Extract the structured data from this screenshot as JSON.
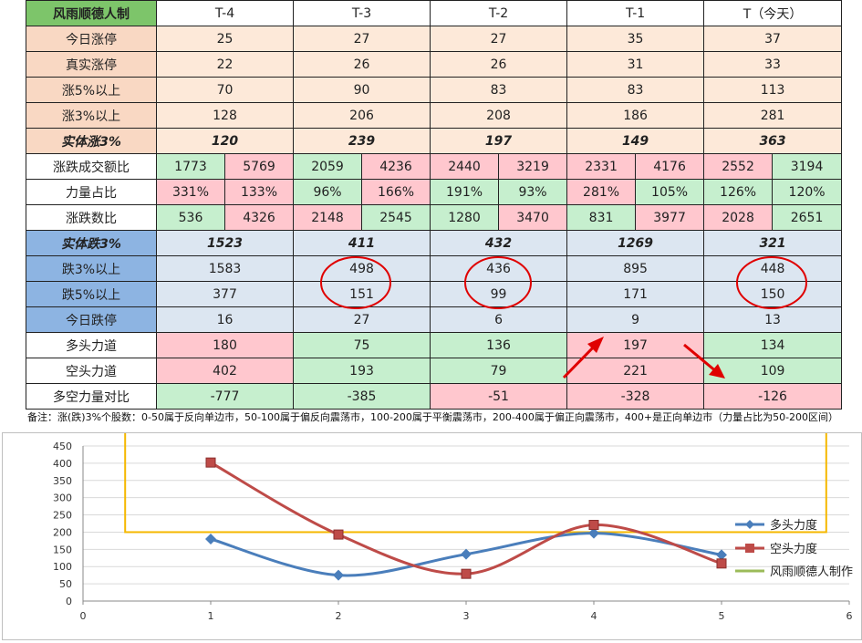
{
  "table": {
    "title": "风雨顺德人制",
    "headers": [
      "T-4",
      "T-3",
      "T-2",
      "T-1",
      "T（今天）"
    ],
    "up_rows": [
      {
        "label": "今日涨停",
        "values": [
          "25",
          "27",
          "27",
          "35",
          "37"
        ]
      },
      {
        "label": "真实涨停",
        "values": [
          "22",
          "26",
          "26",
          "31",
          "33"
        ]
      },
      {
        "label": "涨5%以上",
        "values": [
          "70",
          "90",
          "83",
          "83",
          "113"
        ]
      },
      {
        "label": "涨3%以上",
        "values": [
          "128",
          "206",
          "208",
          "186",
          "281"
        ]
      }
    ],
    "up_solid": {
      "label": "实体涨3%",
      "values": [
        "120",
        "239",
        "197",
        "149",
        "363"
      ]
    },
    "pair_rows": [
      {
        "label": "涨跌成交额比",
        "pairs": [
          [
            "1773",
            "5769"
          ],
          [
            "2059",
            "4236"
          ],
          [
            "2440",
            "3219"
          ],
          [
            "2331",
            "4176"
          ],
          [
            "2552",
            "3194"
          ]
        ]
      },
      {
        "label": "力量占比",
        "pairs": [
          [
            "331%",
            "133%"
          ],
          [
            "96%",
            "166%"
          ],
          [
            "191%",
            "93%"
          ],
          [
            "281%",
            "105%"
          ],
          [
            "126%",
            "120%"
          ]
        ]
      },
      {
        "label": "涨跌数比",
        "pairs": [
          [
            "536",
            "4326"
          ],
          [
            "2148",
            "2545"
          ],
          [
            "1280",
            "3470"
          ],
          [
            "831",
            "3977"
          ],
          [
            "2028",
            "2651"
          ]
        ]
      }
    ],
    "down_solid": {
      "label": "实体跌3%",
      "values": [
        "1523",
        "411",
        "432",
        "1269",
        "321"
      ]
    },
    "down_rows": [
      {
        "label": "跌3%以上",
        "values": [
          "1583",
          "498",
          "436",
          "895",
          "448"
        ]
      },
      {
        "label": "跌5%以上",
        "values": [
          "377",
          "151",
          "99",
          "171",
          "150"
        ]
      },
      {
        "label": "今日跌停",
        "values": [
          "16",
          "27",
          "6",
          "9",
          "13"
        ]
      }
    ],
    "force_rows": [
      {
        "label": "多头力道",
        "values": [
          "180",
          "75",
          "136",
          "197",
          "134"
        ]
      },
      {
        "label": "空头力道",
        "values": [
          "402",
          "193",
          "79",
          "221",
          "109"
        ]
      },
      {
        "label": "多空力量对比",
        "values": [
          "-777",
          "-385",
          "-51",
          "-328",
          "-126"
        ]
      }
    ],
    "note": "备注：涨(跌)3%个股数：0-50属于反向单边市，50-100属于偏反向震荡市，100-200属于平衡震荡市，200-400属于偏正向震荡市，400+是正向单边市（力量占比为50-200区间）"
  },
  "colors": {
    "green": "#c6efce",
    "pink": "#ffc7ce",
    "series1": "#4a7ebb",
    "series2": "#be4b48",
    "series3": "#9bbb59",
    "highlight": "#f5b800"
  },
  "chart_data": {
    "type": "line",
    "xlim": [
      0,
      6
    ],
    "ylim": [
      0,
      450
    ],
    "xticks": [
      0,
      1,
      2,
      3,
      4,
      5,
      6
    ],
    "yticks": [
      0,
      50,
      100,
      150,
      200,
      250,
      300,
      350,
      400,
      450
    ],
    "series": [
      {
        "name": "多头力度",
        "x": [
          1,
          2,
          3,
          4,
          5
        ],
        "values": [
          180,
          75,
          136,
          197,
          134
        ]
      },
      {
        "name": "空头力度",
        "x": [
          1,
          2,
          3,
          4,
          5
        ],
        "values": [
          402,
          193,
          79,
          221,
          109
        ]
      },
      {
        "name": "风雨顺德人制作",
        "x": [],
        "values": []
      }
    ],
    "legend": "right"
  }
}
